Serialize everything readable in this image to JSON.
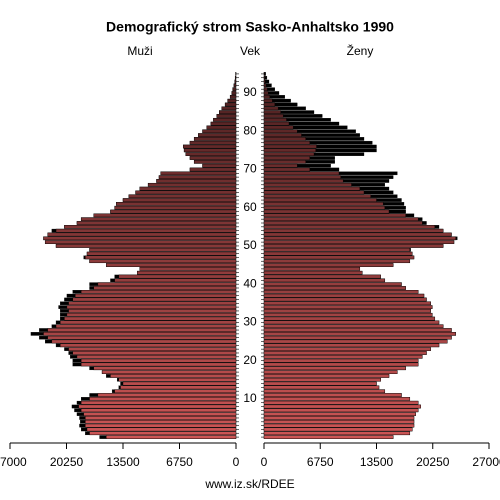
{
  "chart_data": {
    "type": "pyramid",
    "title": "Demografický strom Sasko-Anhaltsko 1990",
    "axis_label": "Vek",
    "footer": "www.iz.sk/RDEE",
    "excess_color": "#000000",
    "ages": [
      0,
      1,
      2,
      3,
      4,
      5,
      6,
      7,
      8,
      9,
      10,
      11,
      12,
      13,
      14,
      15,
      16,
      17,
      18,
      19,
      20,
      21,
      22,
      23,
      24,
      25,
      26,
      27,
      28,
      29,
      30,
      31,
      32,
      33,
      34,
      35,
      36,
      37,
      38,
      39,
      40,
      41,
      42,
      43,
      44,
      45,
      46,
      47,
      48,
      49,
      50,
      51,
      52,
      53,
      54,
      55,
      56,
      57,
      58,
      59,
      60,
      61,
      62,
      63,
      64,
      65,
      66,
      67,
      68,
      69,
      70,
      71,
      72,
      73,
      74,
      75,
      76,
      77,
      78,
      79,
      80,
      81,
      82,
      83,
      84,
      85,
      86,
      87,
      88,
      89,
      90,
      91,
      92,
      93,
      94,
      95
    ],
    "ylim": [
      0,
      96
    ],
    "yticks": [
      10,
      20,
      30,
      40,
      50,
      60,
      70,
      80,
      90
    ],
    "xlim": [
      0,
      27000
    ],
    "xticks": [
      0,
      6750,
      13500,
      20250,
      27000
    ],
    "series": [
      {
        "name": "Muži",
        "color": "#cc5555",
        "values": [
          16300,
          18000,
          18500,
          18700,
          18600,
          18700,
          19000,
          19300,
          19600,
          19000,
          18500,
          17500,
          14800,
          14000,
          13800,
          14200,
          15500,
          16000,
          17500,
          19500,
          19500,
          19800,
          20000,
          20500,
          21500,
          22800,
          23500,
          24500,
          23500,
          22000,
          21500,
          21000,
          21000,
          21000,
          21200,
          21000,
          20500,
          20200,
          19500,
          17500,
          17500,
          15000,
          14500,
          11800,
          11500,
          15500,
          17500,
          18200,
          17800,
          17500,
          21500,
          22800,
          23000,
          22500,
          22000,
          20500,
          19000,
          18500,
          17000,
          15000,
          14500,
          14300,
          13500,
          12800,
          12000,
          11500,
          10500,
          9500,
          9200,
          9000,
          5500,
          4000,
          5000,
          5500,
          6000,
          6200,
          6300,
          5500,
          5000,
          4500,
          4000,
          3500,
          3000,
          2700,
          2300,
          2000,
          1700,
          1300,
          1000,
          700,
          500,
          400,
          250,
          150,
          100,
          50
        ]
      },
      {
        "name": "Ženy",
        "color": "#cc5555",
        "values": [
          15500,
          17500,
          17800,
          18000,
          18000,
          18000,
          18200,
          18500,
          18800,
          18500,
          17500,
          16500,
          14500,
          13800,
          13500,
          14000,
          15000,
          16000,
          17000,
          18500,
          18500,
          19000,
          19500,
          20000,
          21000,
          22000,
          22500,
          23000,
          22500,
          21500,
          21000,
          20500,
          20200,
          20000,
          20200,
          20000,
          19500,
          19200,
          18500,
          17000,
          16500,
          14500,
          14000,
          11800,
          11500,
          15500,
          17500,
          18000,
          17800,
          17600,
          21500,
          22800,
          23200,
          22500,
          21500,
          21000,
          19500,
          19000,
          18000,
          17000,
          17000,
          16800,
          16500,
          16000,
          15500,
          15000,
          14500,
          15000,
          15500,
          16000,
          9000,
          8000,
          8500,
          8500,
          12000,
          13500,
          13500,
          13000,
          12000,
          11500,
          11000,
          10000,
          9000,
          8000,
          7000,
          6000,
          5000,
          4000,
          3200,
          2500,
          1800,
          1300,
          900,
          600,
          350,
          200
        ]
      }
    ]
  }
}
